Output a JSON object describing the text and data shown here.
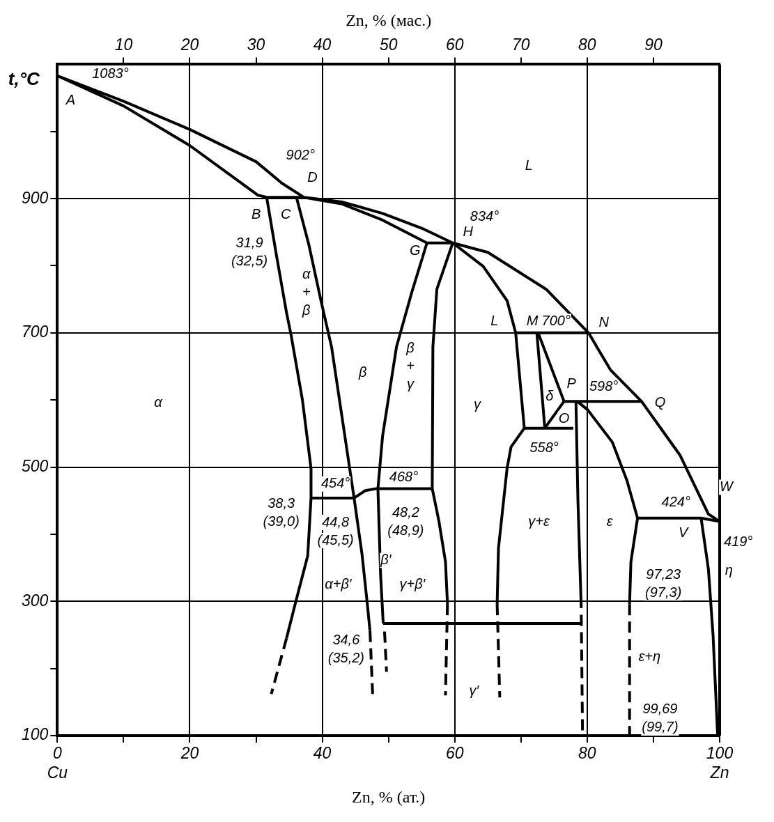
{
  "chart_data": {
    "type": "line",
    "xlabel": "Zn, % (ат.)",
    "x2label": "Zn, % (мас.)",
    "ylabel": "t,°C",
    "xlim": [
      0,
      100
    ],
    "xticks": [
      {
        "value": 0,
        "label": "0\nCu"
      },
      {
        "value": 10,
        "label": null
      },
      20,
      {
        "value": 30,
        "label": null
      },
      40,
      {
        "value": 50,
        "label": null
      },
      60,
      {
        "value": 70,
        "label": null
      },
      80,
      {
        "value": 90,
        "label": null
      },
      {
        "value": 100,
        "label": "100\nZn"
      }
    ],
    "x2lim": [
      0,
      100
    ],
    "x2ticks": [
      10,
      20,
      30,
      40,
      50,
      60,
      70,
      80,
      90
    ],
    "ylim": [
      100,
      1100
    ],
    "yticks": [
      100,
      {
        "value": 200,
        "label": null
      },
      300,
      {
        "value": 400,
        "label": null
      },
      500,
      {
        "value": 600,
        "label": null
      },
      700,
      {
        "value": 800,
        "label": null
      },
      900,
      {
        "value": 1000,
        "label": null
      }
    ],
    "grid": true,
    "legend": false,
    "marker": "none",
    "line_style": "solid",
    "series": [
      {
        "color": "#000000",
        "x": [
          59.7,
          55.8,
          49.1,
          43,
          37.2,
          31.6,
          30.3,
          20,
          10,
          0,
          10,
          20,
          30,
          33.9,
          37.2,
          43,
          49.1,
          55,
          59.7,
          65,
          73.8,
          80.2,
          83.5,
          88.2,
          94,
          98.3,
          100,
          97.2,
          87.6
        ],
        "values": [
          834,
          834,
          868,
          892,
          902,
          902,
          905,
          979,
          1038,
          1083,
          1045,
          1003,
          955,
          923,
          902,
          895,
          878,
          856,
          834,
          820,
          765,
          700,
          645,
          598,
          518,
          430,
          419,
          424,
          424
        ]
      },
      {
        "color": "#000000",
        "x": [
          31.6,
          33,
          34.6,
          35.3,
          37,
          38.3,
          38.3,
          37.8,
          35.9,
          34.6
        ],
        "values": [
          902,
          820,
          730,
          696,
          600,
          498,
          454,
          368,
          296,
          245
        ]
      },
      {
        "color": "#000000",
        "line_style": "dashed",
        "x": [
          34.6,
          32.3
        ],
        "values": [
          245,
          162
        ]
      },
      {
        "color": "#000000",
        "x": [
          36.1,
          38,
          39.8,
          41.4,
          43.2,
          44.8,
          46,
          46.8,
          47.2
        ],
        "values": [
          902,
          830,
          748,
          679,
          560,
          454,
          370,
          296,
          256
        ]
      },
      {
        "color": "#000000",
        "line_style": "dashed",
        "x": [
          47.2,
          47.6
        ],
        "values": [
          256,
          162
        ]
      },
      {
        "color": "#000000",
        "x": [
          38.3,
          44.8
        ],
        "values": [
          454,
          454
        ]
      },
      {
        "color": "#000000",
        "x": [
          44.8,
          46.5,
          48.2,
          56.6
        ],
        "values": [
          454,
          465,
          468,
          468
        ]
      },
      {
        "color": "#000000",
        "x": [
          55.8,
          53.5,
          51.2,
          49.1,
          48.4,
          48.8,
          49.2
        ],
        "values": [
          834,
          760,
          679,
          546,
          468,
          340,
          267
        ]
      },
      {
        "color": "#000000",
        "line_style": "dashed",
        "x": [
          49.4,
          49.7
        ],
        "values": [
          255,
          195
        ]
      },
      {
        "color": "#000000",
        "x": [
          59.7,
          57.3,
          56.7,
          56.6,
          57.6,
          58.6,
          58.9
        ],
        "values": [
          834,
          765,
          679,
          468,
          420,
          359,
          296
        ]
      },
      {
        "color": "#000000",
        "line_style": "dashed",
        "x": [
          58.9,
          58.6
        ],
        "values": [
          296,
          160
        ]
      },
      {
        "color": "#000000",
        "x": [
          59.7,
          64.3,
          67.9,
          69.2,
          70.5
        ],
        "values": [
          834,
          799,
          748,
          700,
          558
        ]
      },
      {
        "color": "#000000",
        "x": [
          69.2,
          80.2
        ],
        "values": [
          700,
          700
        ]
      },
      {
        "color": "#000000",
        "x": [
          72.4,
          73.6
        ],
        "values": [
          700,
          558
        ]
      },
      {
        "color": "#000000",
        "x": [
          72.6,
          76.5
        ],
        "values": [
          700,
          598
        ]
      },
      {
        "color": "#000000",
        "x": [
          76.5,
          73.6
        ],
        "values": [
          598,
          558
        ]
      },
      {
        "color": "#000000",
        "x": [
          70.5,
          77.9
        ],
        "values": [
          558,
          558
        ]
      },
      {
        "color": "#000000",
        "x": [
          76.5,
          88.2
        ],
        "values": [
          598,
          598
        ]
      },
      {
        "color": "#000000",
        "x": [
          78.3,
          78.6,
          79.1
        ],
        "values": [
          598,
          450,
          290
        ]
      },
      {
        "color": "#000000",
        "line_style": "dashed",
        "x": [
          79.1,
          79.3
        ],
        "values": [
          280,
          100
        ]
      },
      {
        "color": "#000000",
        "x": [
          78.5,
          80.1,
          83.8,
          86,
          87.6,
          86.6,
          86.4
        ],
        "values": [
          598,
          585,
          537,
          480,
          424,
          359,
          296
        ]
      },
      {
        "color": "#000000",
        "line_style": "dashed",
        "x": [
          86.4,
          86.4
        ],
        "values": [
          296,
          100
        ]
      },
      {
        "color": "#000000",
        "x": [
          97.2,
          98.3,
          99,
          99.7
        ],
        "values": [
          424,
          348,
          250,
          100
        ]
      },
      {
        "color": "#000000",
        "x": [
          70.5,
          68.5,
          67.9,
          66.6,
          66.4
        ],
        "values": [
          558,
          530,
          498,
          379,
          296
        ]
      },
      {
        "color": "#000000",
        "line_style": "dashed",
        "x": [
          66.4,
          66.8
        ],
        "values": [
          296,
          157
        ]
      },
      {
        "color": "#000000",
        "x": [
          49.2,
          79.1
        ],
        "values": [
          267,
          267
        ]
      }
    ],
    "annotations": [
      "1083°",
      "A",
      "902°",
      "D",
      "B",
      "C",
      "31,9\n(32,5)",
      "L",
      "834°",
      "H",
      "G",
      "L",
      "M",
      "700°",
      "N",
      "α",
      "α\n+\nβ",
      "β",
      "β\n+\nγ",
      "γ",
      "δ",
      "P",
      "598°",
      "Q",
      "O",
      "558°",
      "454°",
      "468°",
      "38,3\n(39,0)",
      "44,8\n(45,5)",
      "48,2\n(48,9)",
      "β′",
      "α+β′",
      "γ+β′",
      "34,6\n(35,2)",
      "γ′",
      "γ+ε",
      "ε",
      "424°",
      "W",
      "419°",
      "V",
      "97,23\n(97,3)",
      "η",
      "ε+η",
      "99,69\n(99,7)"
    ]
  }
}
